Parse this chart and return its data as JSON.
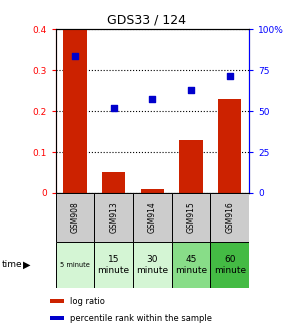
{
  "title": "GDS33 / 124",
  "samples": [
    "GSM908",
    "GSM913",
    "GSM914",
    "GSM915",
    "GSM916"
  ],
  "time_labels": [
    "5 minute",
    "15\nminute",
    "30\nminute",
    "45\nminute",
    "60\nminute"
  ],
  "time_bg_colors": [
    "#d4f5d4",
    "#d4f5d4",
    "#d4f5d4",
    "#88dd88",
    "#44bb44"
  ],
  "log_ratio": [
    0.4,
    0.05,
    0.01,
    0.13,
    0.23
  ],
  "percentile_rank_pct": [
    83.5,
    52.0,
    57.5,
    63.0,
    71.5
  ],
  "ylim_left": [
    0,
    0.4
  ],
  "ylim_right": [
    0,
    100
  ],
  "yticks_left": [
    0,
    0.1,
    0.2,
    0.3,
    0.4
  ],
  "ytick_labels_left": [
    "0",
    "0.1",
    "0.2",
    "0.3",
    "0.4"
  ],
  "yticks_right": [
    0,
    25,
    50,
    75,
    100
  ],
  "ytick_labels_right": [
    "0",
    "25",
    "50",
    "75",
    "100%"
  ],
  "bar_color": "#cc2200",
  "dot_color": "#0000cc",
  "sample_row_bg": "#cccccc",
  "legend_bar_label": "log ratio",
  "legend_dot_label": "percentile rank within the sample"
}
